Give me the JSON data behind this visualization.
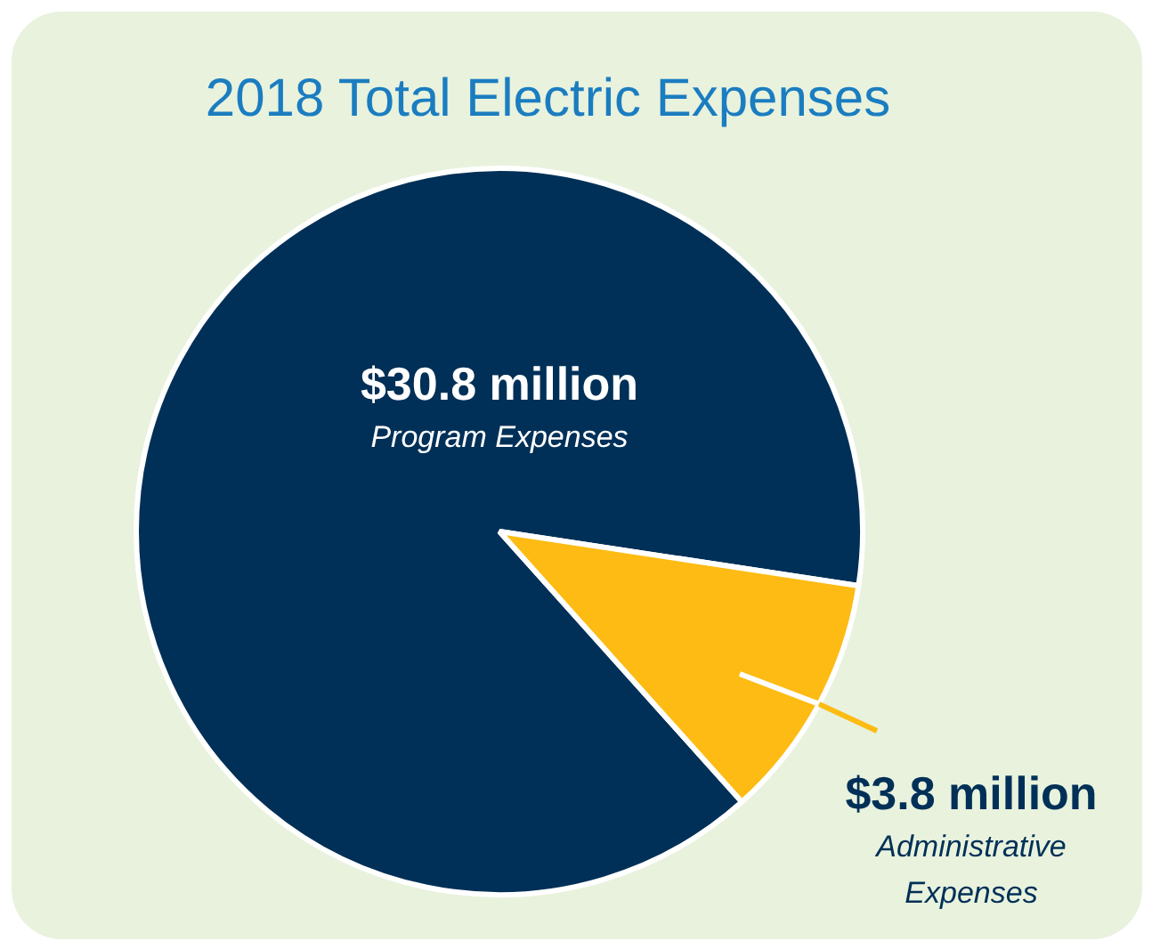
{
  "chart_data": {
    "type": "pie",
    "title": "2018 Total Electric Expenses",
    "categories": [
      "Program Expenses",
      "Administrative Expenses"
    ],
    "values": [
      30.8,
      3.8
    ],
    "colors": [
      "#003057",
      "#fdbb13"
    ],
    "value_labels": [
      "$30.8 million",
      "$3.8 million"
    ]
  }
}
